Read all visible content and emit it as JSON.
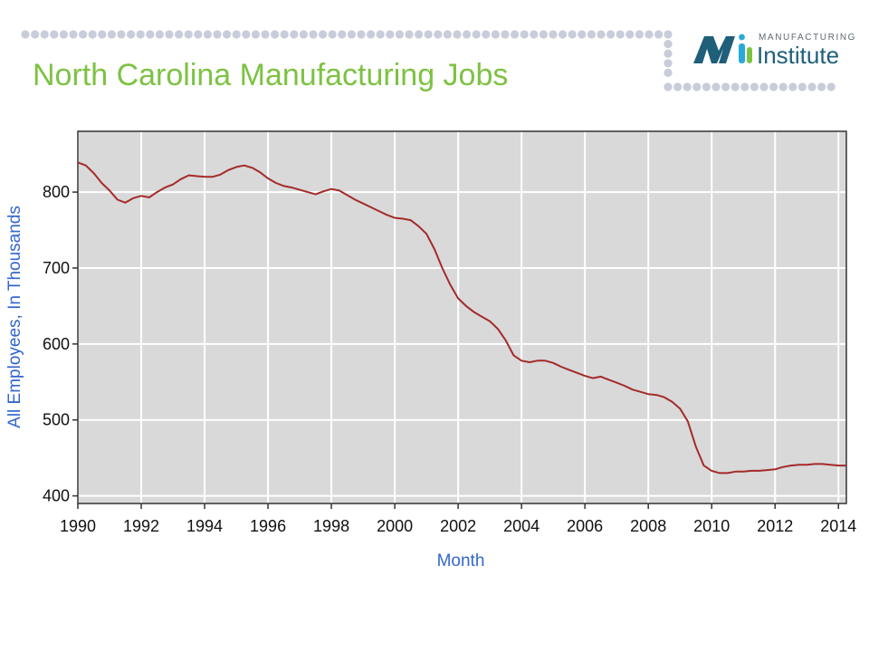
{
  "header": {
    "title": "North Carolina Manufacturing Jobs",
    "logo": {
      "small": "MANUFACTURING",
      "big": "Institute"
    },
    "accent_color": "#7dc242",
    "dot_color": "#c9ccd9"
  },
  "chart_data": {
    "type": "line",
    "title": "",
    "xlabel": "Month",
    "ylabel": "All Employees, In Thousands",
    "xlim": [
      1990.0,
      2014.25
    ],
    "ylim": [
      390,
      880
    ],
    "xticks": [
      1990,
      1992,
      1994,
      1996,
      1998,
      2000,
      2002,
      2004,
      2006,
      2008,
      2010,
      2012,
      2014
    ],
    "yticks": [
      400,
      500,
      600,
      700,
      800
    ],
    "grid": true,
    "line_color": "#a52a2a",
    "background": "#d9d9d9",
    "series": [
      {
        "x": [
          1990.0,
          1990.25,
          1990.5,
          1990.75,
          1991.0,
          1991.25,
          1991.5,
          1991.75,
          1992.0,
          1992.25,
          1992.5,
          1992.75,
          1993.0,
          1993.25,
          1993.5,
          1993.75,
          1994.0,
          1994.25,
          1994.5,
          1994.75,
          1995.0,
          1995.25,
          1995.5,
          1995.75,
          1996.0,
          1996.25,
          1996.5,
          1996.75,
          1997.0,
          1997.25,
          1997.5,
          1997.75,
          1998.0,
          1998.25,
          1998.5,
          1998.75,
          1999.0,
          1999.25,
          1999.5,
          1999.75,
          2000.0,
          2000.25,
          2000.5,
          2000.75,
          2001.0,
          2001.25,
          2001.5,
          2001.75,
          2002.0,
          2002.25,
          2002.5,
          2002.75,
          2003.0,
          2003.25,
          2003.5,
          2003.75,
          2004.0,
          2004.25,
          2004.5,
          2004.75,
          2005.0,
          2005.25,
          2005.5,
          2005.75,
          2006.0,
          2006.25,
          2006.5,
          2006.75,
          2007.0,
          2007.25,
          2007.5,
          2007.75,
          2008.0,
          2008.25,
          2008.5,
          2008.75,
          2009.0,
          2009.25,
          2009.5,
          2009.75,
          2010.0,
          2010.25,
          2010.5,
          2010.75,
          2011.0,
          2011.25,
          2011.5,
          2011.75,
          2012.0,
          2012.25,
          2012.5,
          2012.75,
          2013.0,
          2013.25,
          2013.5,
          2013.75,
          2014.0,
          2014.25
        ],
        "values": [
          839,
          835,
          825,
          812,
          802,
          790,
          786,
          792,
          795,
          793,
          800,
          806,
          810,
          817,
          822,
          821,
          820,
          820,
          823,
          829,
          833,
          835,
          832,
          826,
          818,
          812,
          808,
          806,
          803,
          800,
          797,
          801,
          804,
          802,
          796,
          790,
          785,
          780,
          775,
          770,
          766,
          765,
          763,
          755,
          745,
          725,
          700,
          678,
          660,
          650,
          642,
          636,
          630,
          620,
          605,
          585,
          578,
          576,
          578,
          578,
          575,
          570,
          566,
          562,
          558,
          555,
          557,
          553,
          549,
          545,
          540,
          537,
          534,
          533,
          530,
          524,
          515,
          498,
          465,
          440,
          433,
          430,
          430,
          432,
          432,
          433,
          433,
          434,
          435,
          438,
          440,
          441,
          441,
          442,
          442,
          441,
          440,
          440
        ]
      }
    ]
  }
}
